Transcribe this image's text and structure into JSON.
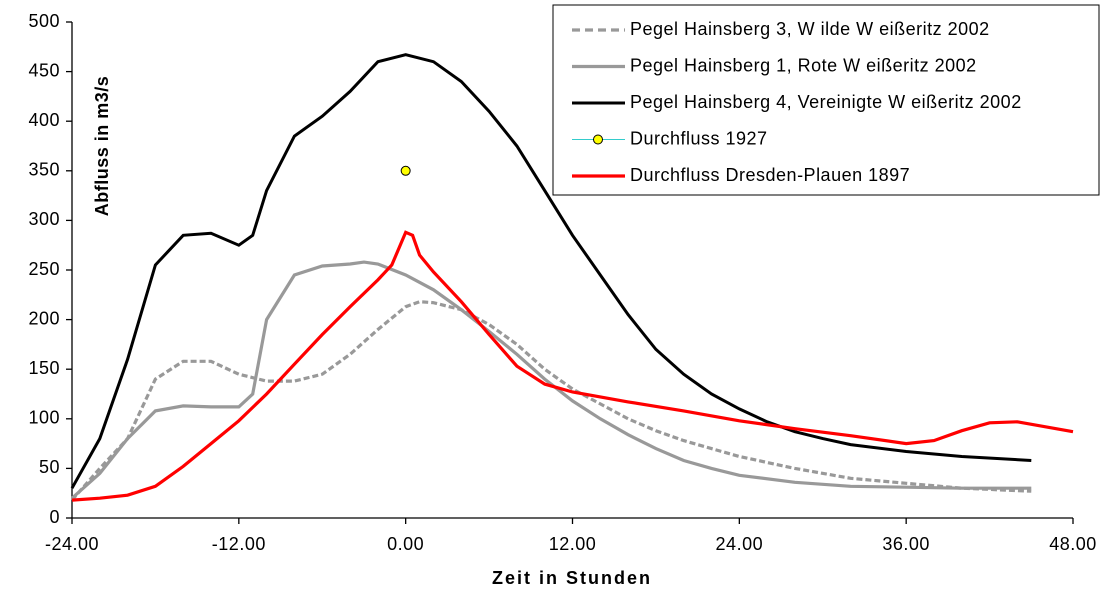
{
  "chart_data": {
    "type": "line",
    "ylabel": "Abfluss in m3/s",
    "xlabel": "Zeit in Stunden",
    "xlim": [
      -24,
      48
    ],
    "xticks": [
      {
        "value": -24,
        "label": "-24.00"
      },
      {
        "value": -12,
        "label": "-12.00"
      },
      {
        "value": 0,
        "label": "0.00"
      },
      {
        "value": 12,
        "label": "12.00"
      },
      {
        "value": 24,
        "label": "24.00"
      },
      {
        "value": 36,
        "label": "36.00"
      },
      {
        "value": 48,
        "label": "48.00"
      }
    ],
    "ylim": [
      0,
      500
    ],
    "yticks": [
      0,
      50,
      100,
      150,
      200,
      250,
      300,
      350,
      400,
      450,
      500
    ],
    "legend": "top-right",
    "series": [
      {
        "name": "Pegel Hainsberg 3, W ilde W eißeritz 2002",
        "color": "#999999",
        "dash": true,
        "x": [
          -24,
          -22,
          -20,
          -18,
          -16,
          -14,
          -12,
          -10,
          -8,
          -6,
          -4,
          -2,
          0,
          1,
          2,
          4,
          6,
          8,
          10,
          12,
          14,
          16,
          18,
          20,
          22,
          24,
          28,
          32,
          36,
          40,
          45
        ],
        "values": [
          18,
          50,
          80,
          140,
          158,
          158,
          145,
          138,
          138,
          145,
          165,
          190,
          213,
          218,
          217,
          210,
          195,
          175,
          150,
          130,
          115,
          100,
          88,
          78,
          70,
          62,
          50,
          40,
          35,
          30,
          27
        ]
      },
      {
        "name": "Pegel Hainsberg 1, Rote W eißeritz 2002",
        "color": "#999999",
        "x": [
          -24,
          -22,
          -20,
          -18,
          -16,
          -14,
          -12,
          -11,
          -10,
          -8,
          -6,
          -4,
          -3,
          -2,
          0,
          2,
          4,
          6,
          8,
          10,
          12,
          14,
          16,
          18,
          20,
          22,
          24,
          28,
          32,
          36,
          40,
          45
        ],
        "values": [
          20,
          45,
          80,
          108,
          113,
          112,
          112,
          125,
          200,
          245,
          254,
          256,
          258,
          256,
          245,
          230,
          210,
          188,
          165,
          140,
          118,
          100,
          84,
          70,
          58,
          50,
          43,
          36,
          32,
          31,
          30,
          30
        ]
      },
      {
        "name": "Pegel Hainsberg 4, Vereinigte W eißeritz 2002",
        "color": "#000000",
        "x": [
          -24,
          -22,
          -20,
          -18,
          -16,
          -14,
          -12,
          -11,
          -10,
          -8,
          -6,
          -4,
          -2,
          0,
          2,
          4,
          6,
          8,
          10,
          12,
          14,
          16,
          18,
          20,
          22,
          24,
          26,
          28,
          30,
          32,
          36,
          40,
          45
        ],
        "values": [
          30,
          80,
          160,
          255,
          285,
          287,
          275,
          285,
          330,
          385,
          405,
          430,
          460,
          467,
          460,
          440,
          410,
          375,
          330,
          285,
          245,
          205,
          170,
          145,
          125,
          110,
          97,
          87,
          80,
          74,
          67,
          62,
          58
        ]
      },
      {
        "name": "Durchfluss 1927",
        "color": "#33cccc",
        "marker_color": "#ffff00",
        "x": [
          0
        ],
        "values": [
          350
        ]
      },
      {
        "name": "Durchfluss Dresden-Plauen 1897",
        "color": "#ff0000",
        "x": [
          -24,
          -22,
          -20,
          -18,
          -16,
          -14,
          -12,
          -10,
          -8,
          -6,
          -4,
          -2,
          -1,
          0,
          0.5,
          1,
          2,
          4,
          6,
          8,
          10,
          12,
          16,
          20,
          24,
          28,
          32,
          36,
          38,
          40,
          42,
          44,
          48
        ],
        "values": [
          18,
          20,
          23,
          32,
          52,
          75,
          98,
          125,
          155,
          185,
          213,
          240,
          255,
          288,
          285,
          265,
          248,
          218,
          185,
          153,
          135,
          127,
          117,
          108,
          98,
          90,
          83,
          75,
          78,
          88,
          96,
          97,
          87
        ]
      }
    ]
  }
}
